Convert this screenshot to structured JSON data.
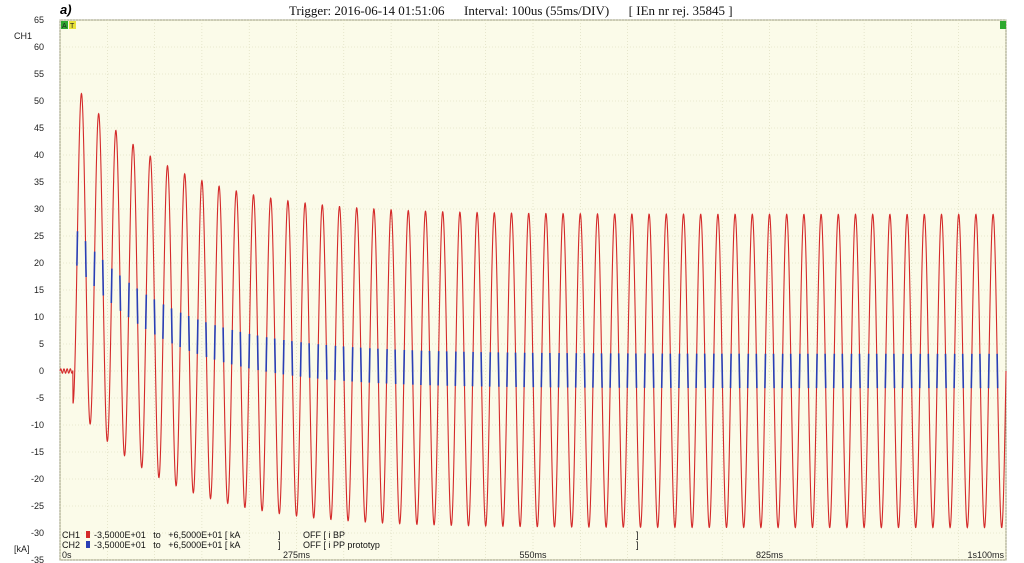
{
  "figure_label": "a)",
  "header": {
    "trigger": "Trigger: 2016-06-14 01:51:06",
    "interval": "Interval: 100us (55ms/DIV)",
    "record": "[ IEn nr rej. 35845 ]"
  },
  "markers": {
    "a": "A",
    "t": "T",
    "end": ""
  },
  "colors": {
    "background": "#fbfbe9",
    "grid": "#d8d8b8",
    "ch1": "#d42a2a",
    "ch2": "#2a3fb5",
    "marker_a": "#2ea82e",
    "marker_t": "#e8e23a"
  },
  "chart_data": {
    "type": "line",
    "channel_label": "CH1",
    "unit_label": "[kA]",
    "ylim": [
      -35,
      65
    ],
    "yticks": [
      65,
      60,
      55,
      50,
      45,
      40,
      35,
      30,
      25,
      20,
      15,
      10,
      5,
      0,
      -5,
      -10,
      -15,
      -20,
      -25,
      -30,
      -35
    ],
    "xlim_ms": [
      0,
      1100
    ],
    "xtick_labels": [
      {
        "t": 0,
        "label": "0s"
      },
      {
        "t": 275,
        "label": "275ms"
      },
      {
        "t": 550,
        "label": "550ms"
      },
      {
        "t": 825,
        "label": "825ms"
      },
      {
        "t": 1100,
        "label": "1s100ms"
      }
    ],
    "signal": {
      "frequency_hz": 50,
      "fault_start_ms": 15,
      "pre_fault_kA": 0,
      "first_peak_kA": 53.5,
      "first_trough_kA": -6,
      "final_peak_kA": 29,
      "final_trough_kA": -29,
      "decay_time_constant_ms": 110
    },
    "series": [
      {
        "channel": "CH1",
        "range": "-3,5000E+01   to   +6,5000E+01 [ kA",
        "close": "]",
        "status": "OFF [ i BP",
        "status_close": "]"
      },
      {
        "channel": "CH2",
        "range": "-3,5000E+01   to   +6,5000E+01 [ kA",
        "close": "]",
        "status": "OFF [ i PP prototyp",
        "status_close": "]"
      }
    ]
  }
}
